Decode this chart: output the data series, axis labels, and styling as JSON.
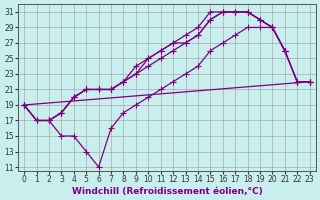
{
  "xlabel": "Windchill (Refroidissement éolien,°C)",
  "background_color": "#c8eeee",
  "line_color": "#800080",
  "grid_color": "#aaaaaa",
  "xlim": [
    -0.5,
    23.5
  ],
  "ylim": [
    10.5,
    32
  ],
  "xticks": [
    0,
    1,
    2,
    3,
    4,
    5,
    6,
    7,
    8,
    9,
    10,
    11,
    12,
    13,
    14,
    15,
    16,
    17,
    18,
    19,
    20,
    21,
    22,
    23
  ],
  "yticks": [
    11,
    13,
    15,
    17,
    19,
    21,
    23,
    25,
    27,
    29,
    31
  ],
  "lines": [
    {
      "x": [
        0,
        1,
        2,
        3,
        4,
        5,
        6,
        7,
        8,
        9,
        10,
        11,
        12,
        13,
        14,
        15,
        16,
        17,
        18,
        19,
        20,
        21,
        22,
        23
      ],
      "y": [
        19,
        17,
        17,
        18,
        20,
        21,
        21,
        21,
        22,
        23,
        24,
        25,
        26,
        27,
        28,
        30,
        31,
        31,
        31,
        30,
        29,
        26,
        22,
        22
      ]
    },
    {
      "x": [
        0,
        1,
        2,
        3,
        4,
        5,
        6,
        7,
        8,
        9,
        10,
        11,
        12,
        13,
        14,
        15,
        16,
        17,
        18,
        19,
        20,
        21,
        22,
        23
      ],
      "y": [
        19,
        17,
        17,
        18,
        20,
        21,
        21,
        21,
        22,
        23,
        25,
        26,
        27,
        27,
        28,
        30,
        31,
        31,
        31,
        30,
        29,
        26,
        22,
        22
      ]
    },
    {
      "x": [
        2,
        3,
        4,
        5,
        6,
        7,
        8,
        9,
        10,
        11,
        12,
        13,
        14,
        15,
        16,
        17,
        18,
        19,
        20,
        21
      ],
      "y": [
        17,
        18,
        20,
        21,
        21,
        21,
        22,
        24,
        25,
        26,
        27,
        28,
        29,
        31,
        31,
        31,
        31,
        30,
        29,
        26
      ]
    },
    {
      "x": [
        0,
        1,
        2,
        3,
        4,
        5,
        6,
        7,
        8,
        9,
        10,
        11,
        12,
        13,
        14,
        15,
        16,
        17,
        18,
        19,
        20,
        21,
        22,
        23
      ],
      "y": [
        19,
        17,
        17,
        15,
        15,
        13,
        11,
        16,
        18,
        19,
        20,
        21,
        22,
        23,
        24,
        26,
        27,
        28,
        29,
        29,
        29,
        26,
        22,
        22
      ]
    },
    {
      "x": [
        0,
        23
      ],
      "y": [
        19,
        22
      ]
    }
  ],
  "marker": "+",
  "markersize": 4,
  "linewidth": 0.9,
  "tick_fontsize": 5.5,
  "xlabel_fontsize": 6.5
}
